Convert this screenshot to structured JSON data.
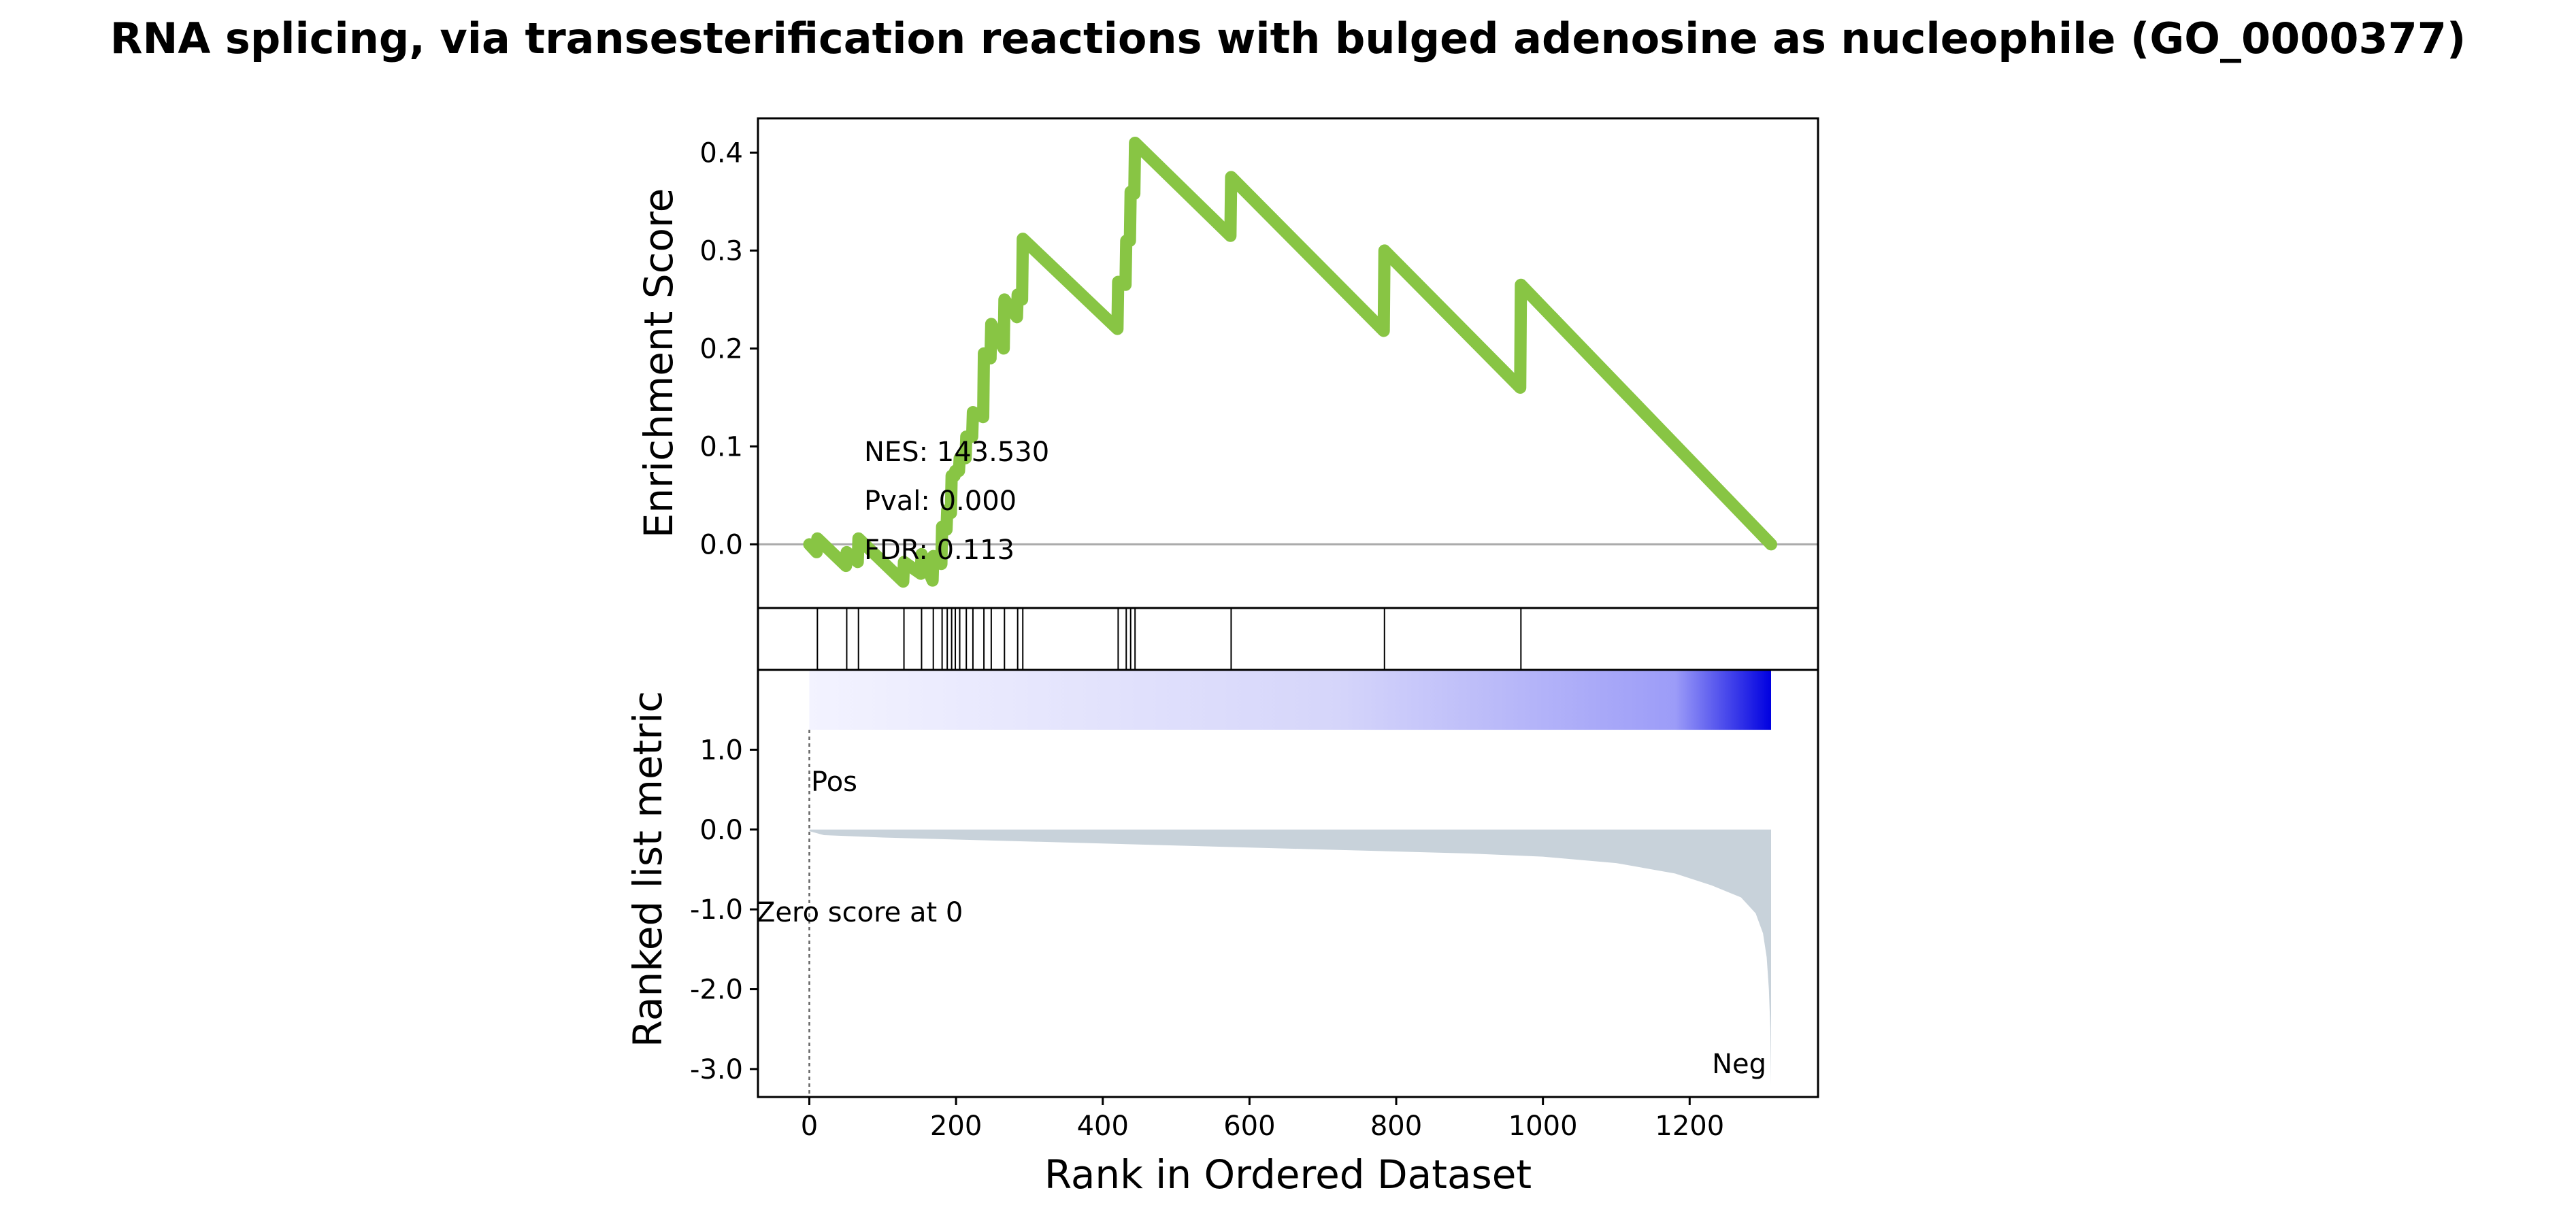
{
  "chart_data": {
    "type": "line",
    "title": "RNA splicing, via transesterification reactions with bulged adenosine as nucleophile (GO_0000377)",
    "xlabel": "Rank in Ordered Dataset",
    "xlim": [
      -70,
      1375
    ],
    "x_ticks": [
      {
        "value": 0,
        "label": "0"
      },
      {
        "value": 200,
        "label": "200"
      },
      {
        "value": 400,
        "label": "400"
      },
      {
        "value": 600,
        "label": "600"
      },
      {
        "value": 800,
        "label": "800"
      },
      {
        "value": 1000,
        "label": "1000"
      },
      {
        "value": 1200,
        "label": "1200"
      }
    ],
    "enrichment": {
      "ylabel": "Enrichment Score",
      "ylim": [
        -0.065,
        0.435
      ],
      "y_ticks": [
        {
          "value": 0.0,
          "label": "0.0"
        },
        {
          "value": 0.1,
          "label": "0.1"
        },
        {
          "value": 0.2,
          "label": "0.2"
        },
        {
          "value": 0.3,
          "label": "0.3"
        },
        {
          "value": 0.4,
          "label": "0.4"
        }
      ],
      "line_color": "#88C544",
      "baseline_color": "#aaaaaa",
      "points": [
        [
          0,
          0.0
        ],
        [
          10,
          -0.008
        ],
        [
          11,
          0.006
        ],
        [
          50,
          -0.022
        ],
        [
          51,
          -0.008
        ],
        [
          66,
          -0.018
        ],
        [
          67,
          0.006
        ],
        [
          128,
          -0.038
        ],
        [
          129,
          -0.018
        ],
        [
          152,
          -0.03
        ],
        [
          153,
          -0.01
        ],
        [
          168,
          -0.037
        ],
        [
          169,
          -0.012
        ],
        [
          180,
          -0.02
        ],
        [
          181,
          0.018
        ],
        [
          187,
          0.015
        ],
        [
          188,
          0.035
        ],
        [
          193,
          0.032
        ],
        [
          194,
          0.07
        ],
        [
          198,
          0.07
        ],
        [
          199,
          0.075
        ],
        [
          204,
          0.075
        ],
        [
          205,
          0.088
        ],
        [
          213,
          0.088
        ],
        [
          214,
          0.11
        ],
        [
          222,
          0.11
        ],
        [
          223,
          0.135
        ],
        [
          237,
          0.13
        ],
        [
          238,
          0.195
        ],
        [
          247,
          0.19
        ],
        [
          248,
          0.225
        ],
        [
          265,
          0.2
        ],
        [
          266,
          0.25
        ],
        [
          283,
          0.232
        ],
        [
          284,
          0.255
        ],
        [
          290,
          0.25
        ],
        [
          291,
          0.312
        ],
        [
          420,
          0.22
        ],
        [
          421,
          0.268
        ],
        [
          431,
          0.265
        ],
        [
          432,
          0.31
        ],
        [
          437,
          0.31
        ],
        [
          438,
          0.36
        ],
        [
          443,
          0.358
        ],
        [
          444,
          0.41
        ],
        [
          574,
          0.315
        ],
        [
          575,
          0.375
        ],
        [
          783,
          0.218
        ],
        [
          784,
          0.3
        ],
        [
          969,
          0.16
        ],
        [
          970,
          0.265
        ],
        [
          1311,
          0.0
        ]
      ],
      "annotations": {
        "nes": "NES: 143.530",
        "pval": "Pval: 0.000",
        "fdr": "FDR: 0.113"
      }
    },
    "hits": {
      "color": "#000000",
      "positions": [
        11,
        51,
        67,
        129,
        153,
        169,
        181,
        188,
        194,
        199,
        205,
        214,
        223,
        238,
        248,
        266,
        284,
        291,
        421,
        432,
        438,
        444,
        575,
        784,
        970
      ]
    },
    "ranked": {
      "ylabel": "Ranked list metric",
      "ylim": [
        -3.35,
        2.0
      ],
      "y_ticks": [
        {
          "value": 1.0,
          "label": "1.0"
        },
        {
          "value": 0.0,
          "label": "0.0"
        },
        {
          "value": -1.0,
          "label": "-1.0"
        },
        {
          "value": -2.0,
          "label": "-2.0"
        },
        {
          "value": -3.0,
          "label": "-3.0"
        }
      ],
      "fill_color": "#C8D2DA",
      "gradient_colors": [
        "#F3F3FF",
        "#0000E0"
      ],
      "gradient_ymin": 1.25,
      "gradient_ymax": 2.0,
      "zero_score_x": 0,
      "metric_points": [
        [
          0,
          -0.02
        ],
        [
          20,
          -0.07
        ],
        [
          100,
          -0.1
        ],
        [
          300,
          -0.15
        ],
        [
          500,
          -0.2
        ],
        [
          700,
          -0.25
        ],
        [
          900,
          -0.3
        ],
        [
          1000,
          -0.34
        ],
        [
          1100,
          -0.42
        ],
        [
          1180,
          -0.55
        ],
        [
          1230,
          -0.7
        ],
        [
          1270,
          -0.85
        ],
        [
          1290,
          -1.05
        ],
        [
          1300,
          -1.3
        ],
        [
          1305,
          -1.6
        ],
        [
          1308,
          -2.0
        ],
        [
          1310,
          -2.5
        ],
        [
          1311,
          -3.2
        ]
      ],
      "pos_label": "Pos",
      "neg_label": "Neg",
      "zero_label": "Zero score at 0",
      "pos_color": "#dd0000",
      "neg_color": "#0000cc"
    }
  }
}
